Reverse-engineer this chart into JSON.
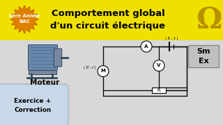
{
  "title_line1": "Comportement global",
  "title_line2": "d'un circuit électrique",
  "badge_text": "1ère Année\nBAC",
  "moteur_label": "Moteur",
  "exercice_label": "Exercice +\nCorrection",
  "sm_ex_label": "Sm\nEx",
  "circuit_label1": "( E , t )",
  "circuit_label2": "( E', r')",
  "header_bg": "#f0e000",
  "body_bg": "#d8d8d8",
  "badge_color": "#e08000",
  "badge_border": "#b06000",
  "omega_color": "#b89000",
  "sm_ex_bg": "#c0c0c0",
  "title_fontsize": 9.5,
  "badge_fontsize": 5.0,
  "moteur_fontsize": 7.5,
  "exercice_fontsize": 6.5
}
